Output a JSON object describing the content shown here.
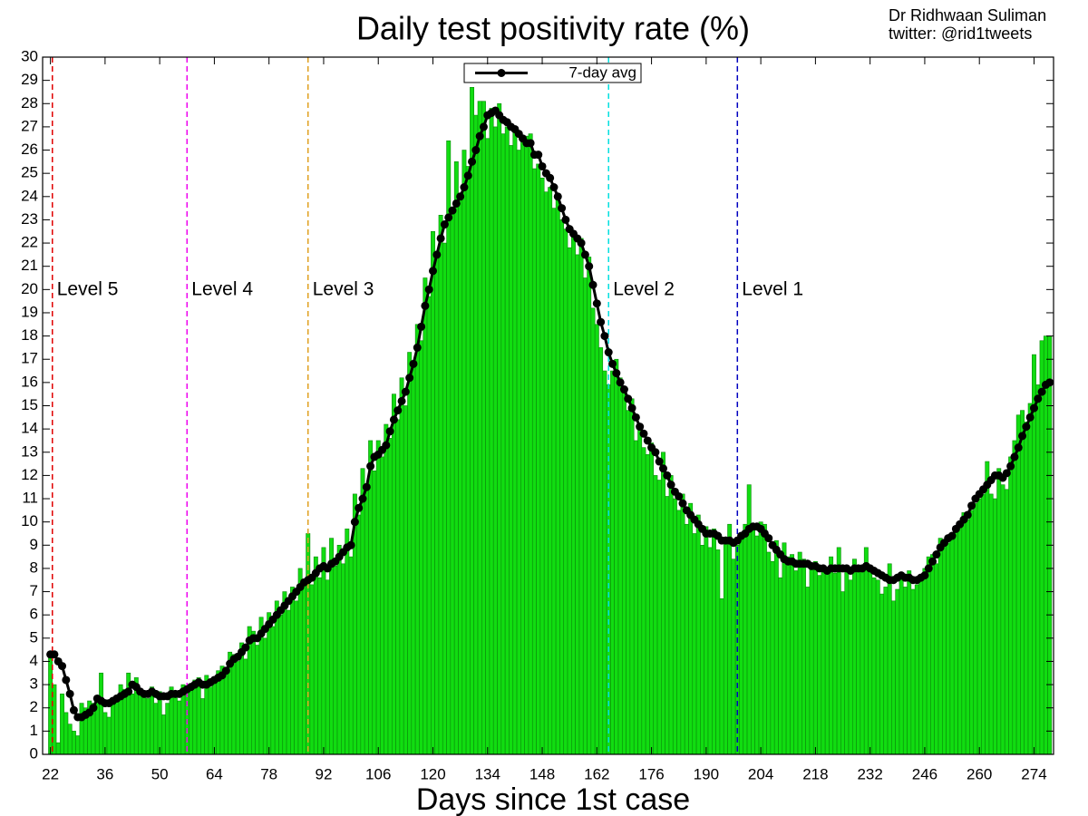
{
  "chart_data": {
    "type": "bar",
    "title": "Daily test positivity rate (%)",
    "annotations": [
      "Dr Ridhwaan Suliman",
      "twitter: @rid1tweets"
    ],
    "x_label": "Days since 1st case",
    "xlim": [
      20,
      279
    ],
    "ylim": [
      0,
      30
    ],
    "xticks": [
      22,
      36,
      50,
      64,
      78,
      92,
      106,
      120,
      134,
      148,
      162,
      176,
      190,
      204,
      218,
      232,
      246,
      260,
      274
    ],
    "yticks": [
      0,
      1,
      2,
      3,
      4,
      5,
      6,
      7,
      8,
      9,
      10,
      11,
      12,
      13,
      14,
      15,
      16,
      17,
      18,
      19,
      20,
      21,
      22,
      23,
      24,
      25,
      26,
      27,
      28,
      29,
      30
    ],
    "x": [
      22,
      23,
      24,
      25,
      26,
      27,
      28,
      29,
      30,
      31,
      32,
      33,
      34,
      35,
      36,
      37,
      38,
      39,
      40,
      41,
      42,
      43,
      44,
      45,
      46,
      47,
      48,
      49,
      50,
      51,
      52,
      53,
      54,
      55,
      56,
      57,
      58,
      59,
      60,
      61,
      62,
      63,
      64,
      65,
      66,
      67,
      68,
      69,
      70,
      71,
      72,
      73,
      74,
      75,
      76,
      77,
      78,
      79,
      80,
      81,
      82,
      83,
      84,
      85,
      86,
      87,
      88,
      89,
      90,
      91,
      92,
      93,
      94,
      95,
      96,
      97,
      98,
      99,
      100,
      101,
      102,
      103,
      104,
      105,
      106,
      107,
      108,
      109,
      110,
      111,
      112,
      113,
      114,
      115,
      116,
      117,
      118,
      119,
      120,
      121,
      122,
      123,
      124,
      125,
      126,
      127,
      128,
      129,
      130,
      131,
      132,
      133,
      134,
      135,
      136,
      137,
      138,
      139,
      140,
      141,
      142,
      143,
      144,
      145,
      146,
      147,
      148,
      149,
      150,
      151,
      152,
      153,
      154,
      155,
      156,
      157,
      158,
      159,
      160,
      161,
      162,
      163,
      164,
      165,
      166,
      167,
      168,
      169,
      170,
      171,
      172,
      173,
      174,
      175,
      176,
      177,
      178,
      179,
      180,
      181,
      182,
      183,
      184,
      185,
      186,
      187,
      188,
      189,
      190,
      191,
      192,
      193,
      194,
      195,
      196,
      197,
      198,
      199,
      200,
      201,
      202,
      203,
      204,
      205,
      206,
      207,
      208,
      209,
      210,
      211,
      212,
      213,
      214,
      215,
      216,
      217,
      218,
      219,
      220,
      221,
      222,
      223,
      224,
      225,
      226,
      227,
      228,
      229,
      230,
      231,
      232,
      233,
      234,
      235,
      236,
      237,
      238,
      239,
      240,
      241,
      242,
      243,
      244,
      245,
      246,
      247,
      248,
      249,
      250,
      251,
      252,
      253,
      254,
      255,
      256,
      257,
      258,
      259,
      260,
      261,
      262,
      263,
      264,
      265,
      266,
      267,
      268,
      269,
      270,
      271,
      272,
      273,
      274,
      275,
      276,
      277,
      278
    ],
    "color": "#11dd11",
    "values": [
      4.2,
      3.0,
      0.5,
      2.6,
      1.8,
      1.3,
      1.0,
      0.8,
      2.2,
      2.0,
      2.3,
      2.2,
      2.5,
      3.5,
      1.8,
      1.6,
      2.2,
      2.4,
      3.0,
      2.8,
      3.5,
      2.6,
      3.3,
      2.7,
      2.5,
      2.4,
      2.9,
      2.2,
      2.7,
      1.7,
      2.2,
      2.9,
      2.5,
      2.3,
      3.0,
      2.7,
      2.8,
      3.2,
      3.3,
      2.4,
      3.4,
      2.9,
      3.2,
      3.6,
      3.8,
      3.7,
      4.4,
      4.3,
      4.0,
      4.8,
      4.1,
      5.5,
      5.3,
      4.7,
      5.9,
      5.0,
      6.1,
      5.5,
      6.6,
      6.0,
      7.0,
      6.2,
      7.2,
      6.6,
      8.0,
      7.3,
      9.5,
      7.3,
      8.5,
      7.6,
      8.9,
      7.5,
      9.3,
      8.1,
      9.0,
      8.2,
      9.7,
      8.5,
      11.2,
      10.3,
      12.3,
      11.4,
      13.5,
      12.2,
      13.5,
      12.8,
      14.2,
      13.6,
      15.5,
      14.4,
      16.2,
      15.0,
      17.3,
      16.8,
      18.5,
      17.8,
      20.5,
      19.7,
      22.5,
      21.6,
      23.2,
      22.0,
      26.4,
      23.3,
      25.5,
      24.0,
      26.0,
      25.3,
      28.7,
      27.5,
      28.1,
      28.1,
      26.5,
      27.8,
      27.0,
      28.0,
      26.7,
      27.0,
      26.2,
      26.8,
      26.0,
      26.5,
      26.6,
      26.7,
      25.2,
      25.4,
      24.8,
      24.2,
      24.4,
      23.5,
      24.1,
      23.0,
      22.6,
      21.8,
      22.3,
      21.5,
      22.2,
      20.5,
      21.4,
      19.2,
      18.5,
      17.5,
      16.5,
      15.9,
      16.5,
      17.0,
      16.2,
      15.8,
      14.8,
      15.3,
      13.5,
      14.0,
      13.2,
      12.9,
      13.4,
      12.0,
      11.8,
      13.0,
      11.1,
      12.0,
      11.0,
      10.5,
      11.2,
      9.9,
      10.8,
      9.5,
      10.3,
      9.0,
      9.8,
      8.9,
      9.7,
      8.8,
      6.7,
      9.3,
      9.9,
      8.4,
      9.0,
      9.5,
      9.9,
      11.6,
      9.7,
      9.4,
      10.0,
      9.9,
      8.7,
      8.3,
      9.2,
      7.6,
      9.1,
      8.5,
      8.6,
      7.9,
      8.7,
      8.4,
      7.2,
      8.0,
      8.3,
      7.7,
      7.9,
      8.0,
      8.5,
      7.8,
      8.9,
      7.0,
      8.0,
      7.5,
      8.4,
      7.9,
      8.1,
      8.9,
      8.1,
      7.6,
      7.5,
      6.9,
      7.2,
      8.2,
      6.6,
      7.1,
      7.6,
      7.2,
      7.9,
      7.1,
      7.3,
      7.7,
      8.0,
      8.5,
      8.6,
      8.2,
      9.3,
      9.0,
      9.1,
      9.5,
      9.6,
      10.0,
      10.4,
      10.1,
      10.5,
      10.8,
      11.0,
      11.2,
      12.6,
      11.2,
      11.0,
      12.3,
      11.6,
      11.4,
      12.8,
      13.5,
      14.6,
      14.8,
      14.3,
      15.1,
      17.2,
      15.9,
      17.8,
      18.0,
      18.0
    ],
    "series": [
      {
        "name": "7-day avg",
        "type": "line",
        "color": "#000000",
        "values": [
          4.3,
          4.3,
          4.0,
          3.8,
          3.2,
          2.6,
          1.9,
          1.6,
          1.6,
          1.7,
          1.8,
          2.0,
          2.4,
          2.3,
          2.2,
          2.2,
          2.3,
          2.4,
          2.5,
          2.6,
          2.7,
          3.0,
          2.9,
          2.7,
          2.6,
          2.6,
          2.7,
          2.6,
          2.5,
          2.5,
          2.5,
          2.6,
          2.6,
          2.6,
          2.7,
          2.8,
          2.9,
          3.0,
          3.1,
          3.0,
          3.0,
          3.1,
          3.2,
          3.3,
          3.4,
          3.6,
          3.9,
          4.1,
          4.2,
          4.4,
          4.6,
          4.9,
          5.0,
          5.0,
          5.2,
          5.4,
          5.6,
          5.8,
          6.0,
          6.2,
          6.4,
          6.6,
          6.8,
          7.0,
          7.2,
          7.4,
          7.5,
          7.6,
          7.8,
          8.0,
          8.1,
          8.0,
          8.2,
          8.3,
          8.5,
          8.7,
          8.9,
          9.0,
          10.0,
          10.6,
          11.0,
          11.5,
          12.4,
          12.8,
          12.9,
          13.1,
          13.3,
          13.9,
          14.4,
          14.8,
          15.2,
          15.6,
          16.2,
          16.8,
          17.5,
          18.4,
          19.3,
          20.0,
          20.8,
          21.5,
          22.2,
          22.8,
          23.1,
          23.4,
          23.7,
          24.0,
          24.4,
          24.9,
          25.5,
          26.0,
          26.6,
          27.0,
          27.5,
          27.6,
          27.7,
          27.5,
          27.3,
          27.2,
          27.0,
          26.9,
          26.7,
          26.5,
          26.3,
          26.3,
          25.8,
          25.8,
          25.3,
          25.0,
          24.8,
          24.4,
          24.0,
          23.5,
          23.0,
          22.6,
          22.4,
          22.2,
          22.0,
          21.5,
          21.0,
          20.2,
          19.4,
          18.6,
          18.0,
          17.3,
          16.8,
          16.4,
          16.0,
          15.7,
          15.3,
          14.9,
          14.5,
          14.1,
          13.8,
          13.5,
          13.2,
          13.0,
          12.6,
          12.3,
          12.0,
          11.6,
          11.3,
          11.1,
          10.8,
          10.5,
          10.3,
          10.1,
          9.9,
          9.7,
          9.5,
          9.5,
          9.5,
          9.4,
          9.2,
          9.2,
          9.2,
          9.1,
          9.2,
          9.4,
          9.5,
          9.7,
          9.8,
          9.8,
          9.7,
          9.5,
          9.3,
          9.0,
          8.8,
          8.6,
          8.4,
          8.3,
          8.3,
          8.2,
          8.2,
          8.2,
          8.2,
          8.1,
          8.1,
          8.0,
          8.0,
          7.9,
          8.0,
          8.0,
          8.0,
          8.0,
          8.0,
          7.9,
          8.0,
          8.0,
          8.0,
          8.1,
          8.0,
          7.9,
          7.8,
          7.7,
          7.6,
          7.5,
          7.5,
          7.6,
          7.7,
          7.6,
          7.6,
          7.5,
          7.5,
          7.6,
          7.7,
          8.0,
          8.3,
          8.6,
          8.9,
          9.1,
          9.3,
          9.4,
          9.7,
          9.9,
          10.1,
          10.3,
          10.7,
          11.0,
          11.2,
          11.4,
          11.6,
          11.8,
          12.0,
          12.0,
          11.9,
          12.1,
          12.4,
          12.8,
          13.2,
          13.7,
          14.1,
          14.5,
          14.9,
          15.3,
          15.6,
          15.9,
          16.0
        ]
      }
    ],
    "level_lines": [
      {
        "x": 22.5,
        "label": "Level 5",
        "color": "#e00000"
      },
      {
        "x": 57,
        "label": "Level 4",
        "color": "#ee00ee"
      },
      {
        "x": 88,
        "label": "Level 3",
        "color": "#e0a020"
      },
      {
        "x": 165,
        "label": "Level 2",
        "color": "#00e0e0"
      },
      {
        "x": 198,
        "label": "Level 1",
        "color": "#0000c0"
      }
    ]
  }
}
